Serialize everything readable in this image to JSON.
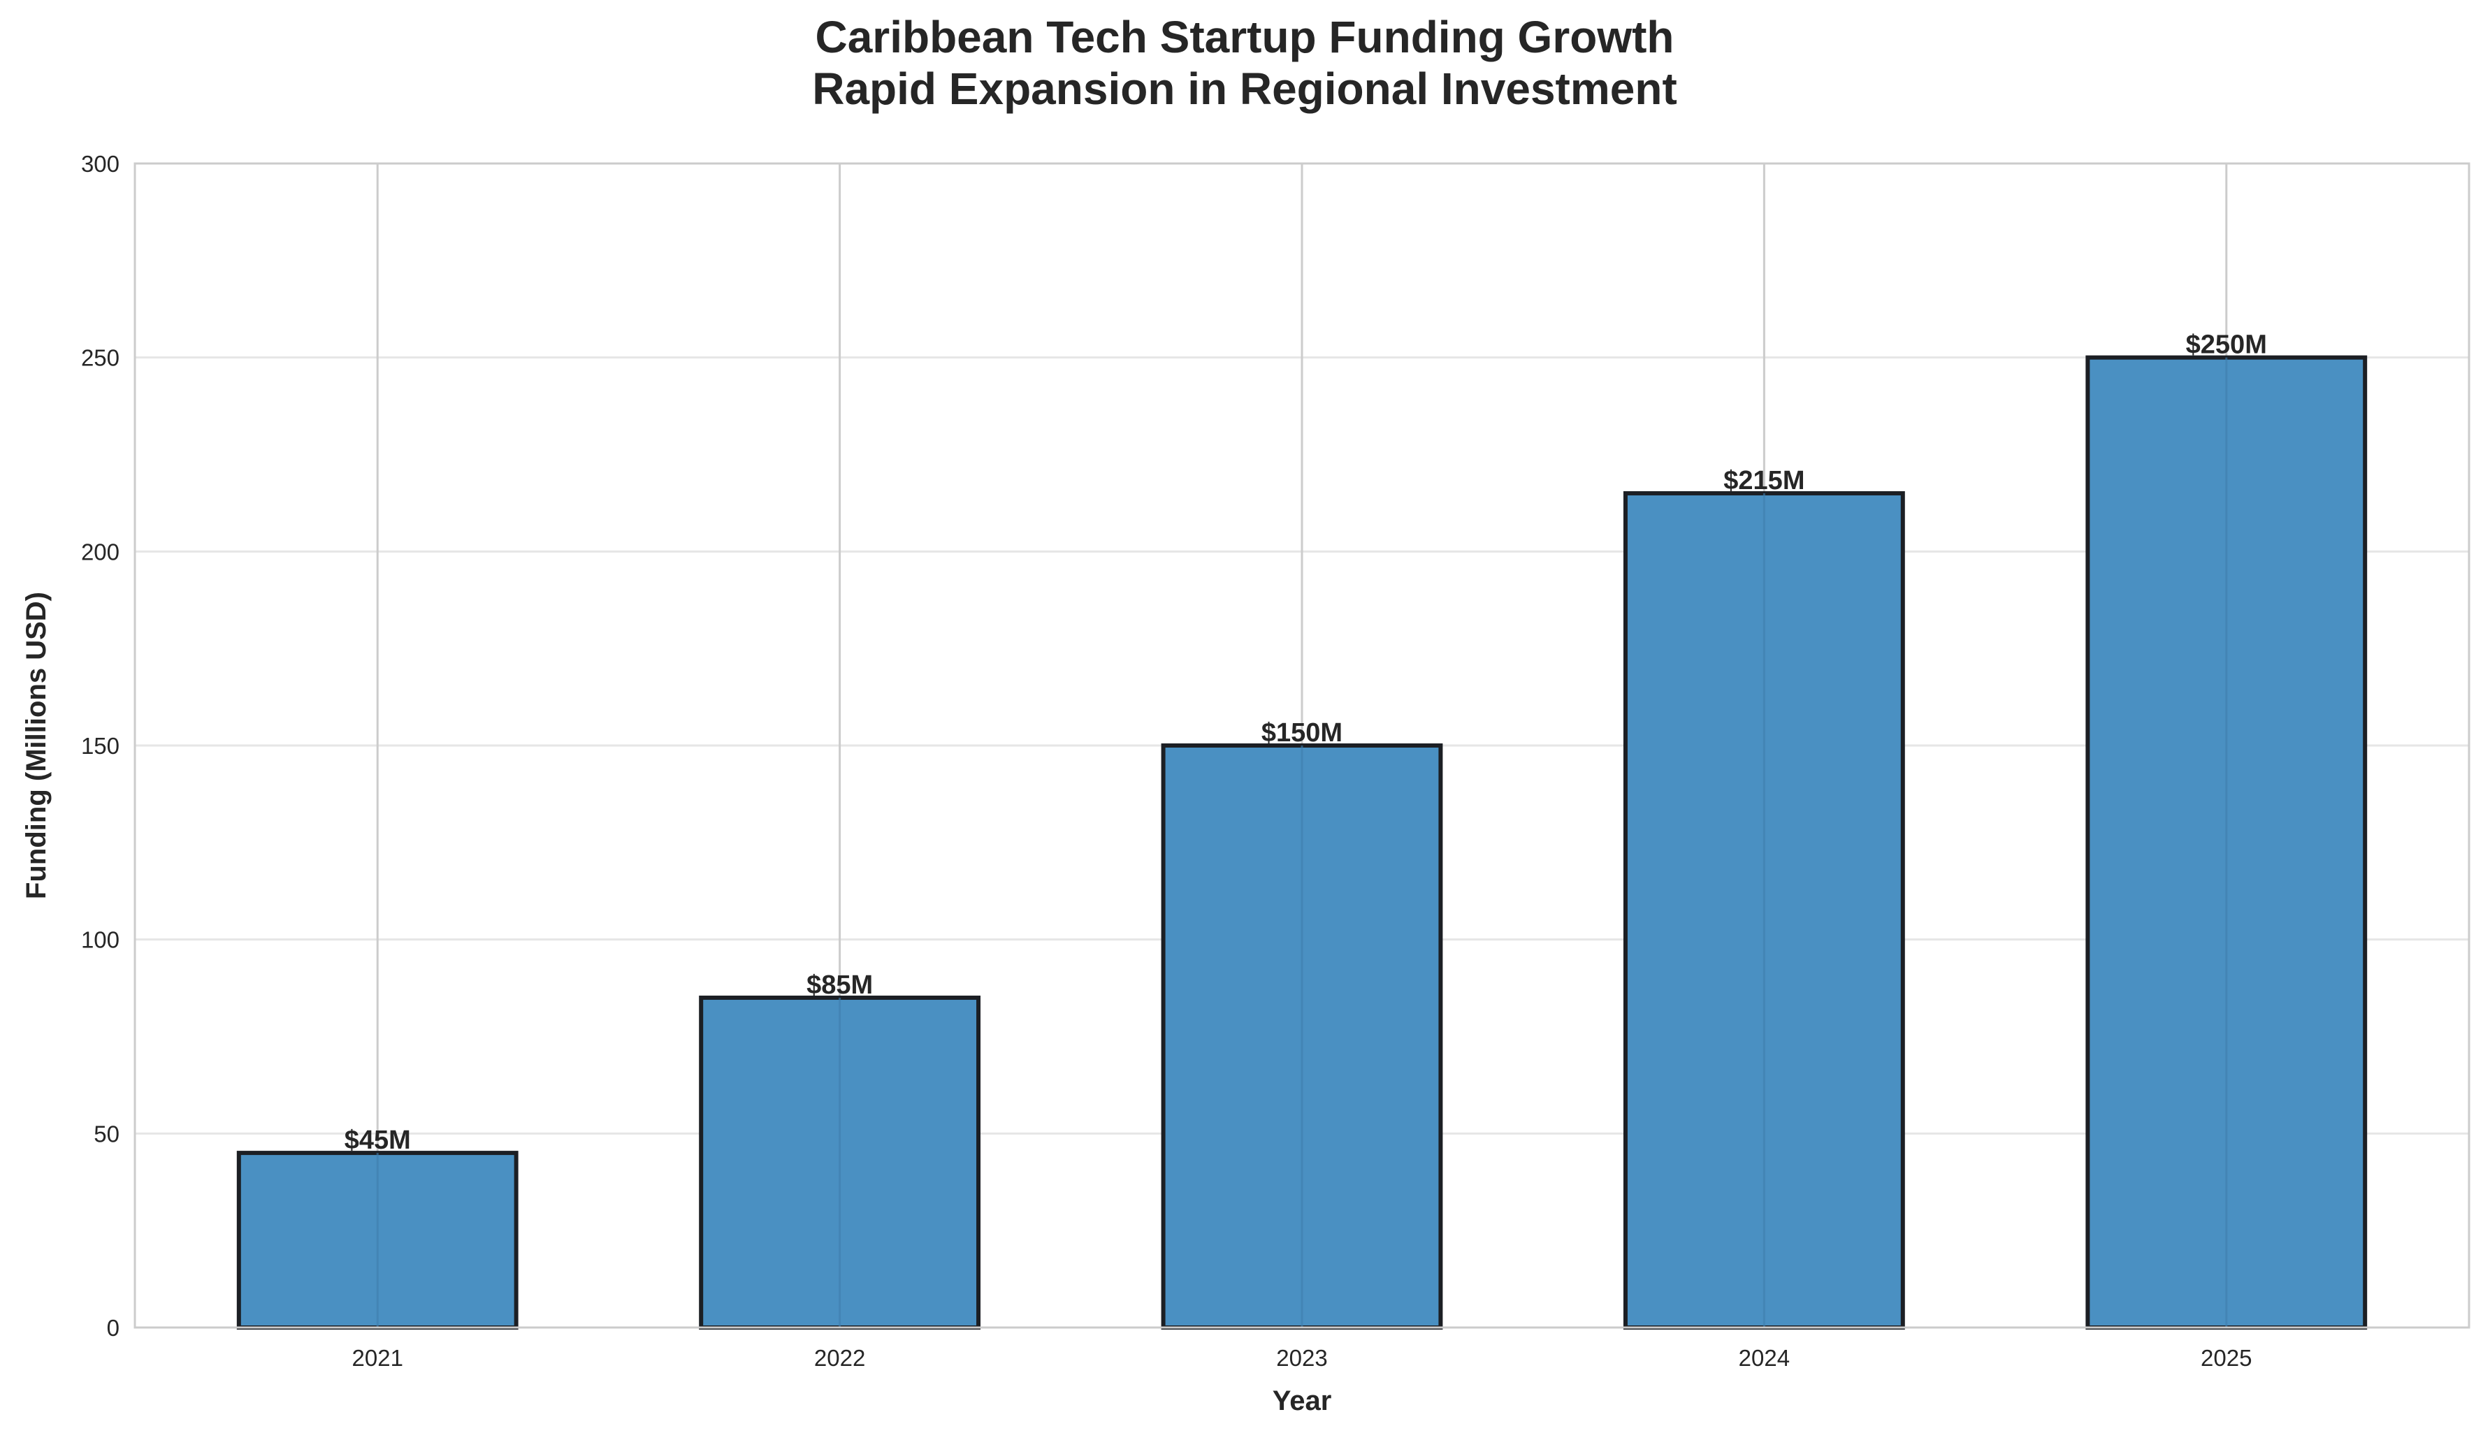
{
  "chart_data": {
    "type": "bar",
    "title": "Caribbean Tech Startup Funding Growth",
    "subtitle": "Rapid Expansion in Regional Investment",
    "xlabel": "Year",
    "ylabel": "Funding (Millions USD)",
    "categories": [
      "2021",
      "2022",
      "2023",
      "2024",
      "2025"
    ],
    "values": [
      45,
      85,
      150,
      215,
      250
    ],
    "data_labels": [
      "$45M",
      "$85M",
      "$150M",
      "$215M",
      "$250M"
    ],
    "ylim": [
      0,
      300
    ],
    "yticks": [
      0,
      50,
      100,
      150,
      200,
      250,
      300
    ],
    "grid": true,
    "colors": {
      "bar_fill": "#4a90c2",
      "bar_edge": "#1c1f24",
      "grid": "#e6e6e6",
      "xgrid": "#cccccc",
      "spine": "#cccccc"
    }
  }
}
